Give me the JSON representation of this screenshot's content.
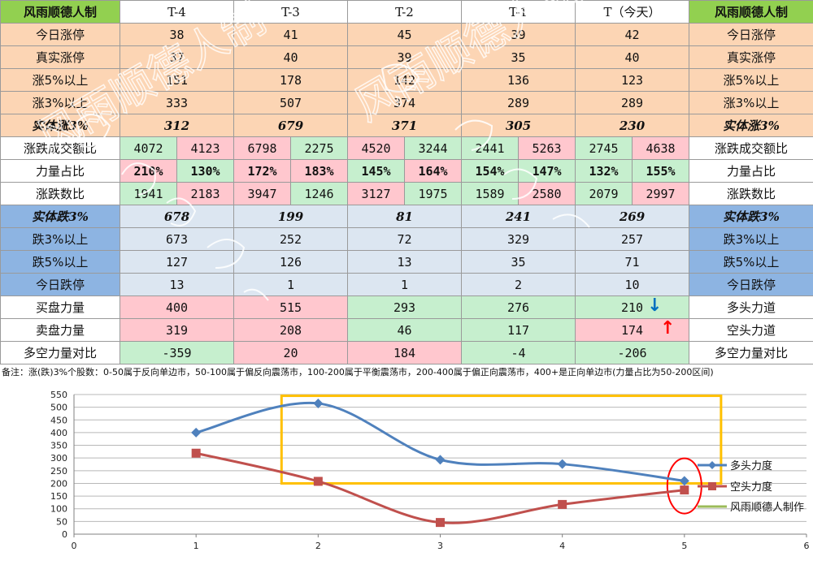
{
  "brand": "风雨顺德人制",
  "headers": [
    "T-4",
    "T-3",
    "T-2",
    "T-1",
    "T（今天）"
  ],
  "rows": {
    "jrzt": {
      "label": "今日涨停",
      "values": [
        "38",
        "41",
        "45",
        "39",
        "42"
      ]
    },
    "zszt": {
      "label": "真实涨停",
      "values": [
        "37",
        "40",
        "39",
        "35",
        "40"
      ]
    },
    "z5": {
      "label": "涨5%以上",
      "values": [
        "151",
        "178",
        "142",
        "136",
        "123"
      ]
    },
    "z3": {
      "label": "涨3%以上",
      "values": [
        "333",
        "507",
        "374",
        "289",
        "289"
      ]
    },
    "stz3": {
      "label": "实体涨3%",
      "values": [
        "312",
        "679",
        "371",
        "305",
        "230"
      ]
    },
    "cjeb": {
      "label": "涨跌成交额比",
      "pairs": [
        [
          "4072",
          "4123"
        ],
        [
          "6798",
          "2275"
        ],
        [
          "4520",
          "3244"
        ],
        [
          "2441",
          "5263"
        ],
        [
          "2745",
          "4638"
        ]
      ]
    },
    "llzb": {
      "label": "力量占比",
      "pairs": [
        [
          "210%",
          "130%"
        ],
        [
          "172%",
          "183%"
        ],
        [
          "145%",
          "164%"
        ],
        [
          "154%",
          "147%"
        ],
        [
          "132%",
          "155%"
        ]
      ]
    },
    "zdsb": {
      "label": "涨跌数比",
      "pairs": [
        [
          "1941",
          "2183"
        ],
        [
          "3947",
          "1246"
        ],
        [
          "3127",
          "1975"
        ],
        [
          "1589",
          "2580"
        ],
        [
          "2079",
          "2997"
        ]
      ]
    },
    "std3": {
      "label": "实体跌3%",
      "values": [
        "678",
        "199",
        "81",
        "241",
        "269"
      ]
    },
    "d3": {
      "label": "跌3%以上",
      "values": [
        "673",
        "252",
        "72",
        "329",
        "257"
      ]
    },
    "d5": {
      "label": "跌5%以上",
      "values": [
        "127",
        "126",
        "13",
        "35",
        "71"
      ]
    },
    "jrdt": {
      "label": "今日跌停",
      "values": [
        "13",
        "1",
        "1",
        "2",
        "10"
      ]
    },
    "mpll": {
      "label": "买盘力量",
      "values": [
        "400",
        "515",
        "293",
        "276",
        "210"
      ],
      "right": "多头力道"
    },
    "mcll": {
      "label": "卖盘力量",
      "values": [
        "319",
        "208",
        "46",
        "117",
        "174"
      ],
      "right": "空头力道"
    },
    "dkdb": {
      "label": "多空力量对比",
      "values": [
        "-359",
        "20",
        "184",
        "-4",
        "-206"
      ]
    }
  },
  "note": "备注：涨(跌)3%个股数：0-50属于反向单边市，50-100属于偏反向震荡市，100-200属于平衡震荡市，200-400属于偏正向震荡市，400+是正向单边市(力量占比为50-200区间)",
  "arrow_glyph_up": "↑",
  "arrow_glyph_down": "↓",
  "watermark": "风雨顺德人制",
  "colors": {
    "brand_green": "#92d050",
    "peach": "#fcd5b4",
    "blue_header": "#8db4e2",
    "light_blue": "#dce6f1",
    "pink": "#ffc7ce",
    "green": "#c6efce",
    "series_blue": "#4f81bd",
    "series_red": "#c0504d",
    "series_green": "#9bbb59",
    "highlight_box": "#ffc000",
    "highlight_circle": "#ff0000"
  },
  "chart_data": {
    "type": "line",
    "xlim": [
      0,
      6
    ],
    "ylim": [
      0,
      550
    ],
    "xticks": [
      "0",
      "1",
      "2",
      "3",
      "4",
      "5",
      "6"
    ],
    "yticks": [
      "0",
      "50",
      "100",
      "150",
      "200",
      "250",
      "300",
      "350",
      "400",
      "450",
      "500",
      "550"
    ],
    "grid": true,
    "legend_position": "right",
    "series": [
      {
        "name": "多头力度",
        "marker": "diamond",
        "color": "#4f81bd",
        "x": [
          1,
          2,
          3,
          4,
          5
        ],
        "values": [
          400,
          515,
          293,
          276,
          210
        ]
      },
      {
        "name": "空头力度",
        "marker": "square",
        "color": "#c0504d",
        "x": [
          1,
          2,
          3,
          4,
          5
        ],
        "values": [
          319,
          208,
          46,
          117,
          174
        ]
      },
      {
        "name": "风雨顺德人制作",
        "marker": "none",
        "color": "#9bbb59",
        "x": [],
        "values": []
      }
    ],
    "highlight_box": {
      "x": [
        1.7,
        5.3
      ],
      "y": [
        200,
        545
      ]
    },
    "highlight_circle": {
      "x": 5,
      "y": 190
    }
  }
}
